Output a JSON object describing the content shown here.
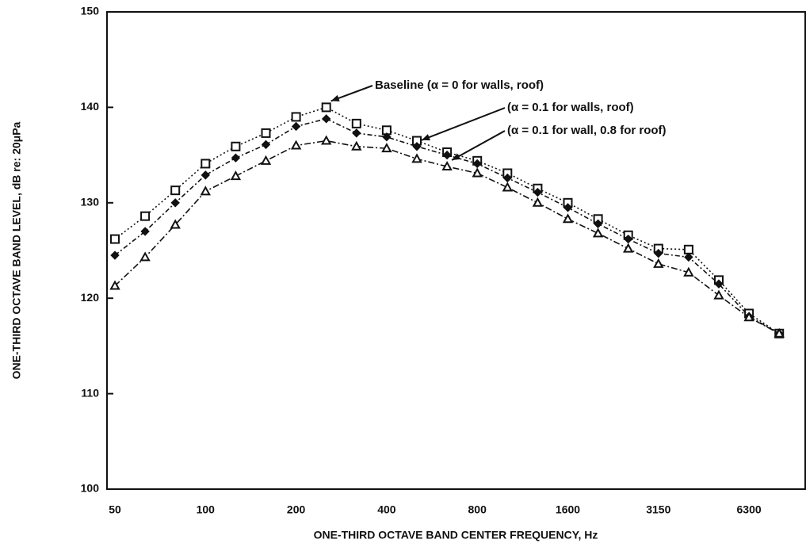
{
  "chart_data": {
    "type": "line",
    "xlabel": "ONE-THIRD OCTAVE BAND CENTER FREQUENCY, Hz",
    "ylabel": "ONE-THIRD OCTAVE BAND LEVEL, dB re: 20μPa",
    "categories": [
      "50",
      null,
      null,
      "100",
      null,
      null,
      "200",
      null,
      null,
      "400",
      null,
      null,
      "800",
      null,
      null,
      "1600",
      null,
      null,
      "3150",
      null,
      null,
      "6300",
      null
    ],
    "ylim": [
      100,
      150
    ],
    "yticks": [
      100,
      110,
      120,
      130,
      140,
      150
    ],
    "series": [
      {
        "name": "Baseline (α = 0 for walls, roof)",
        "color": "#111111",
        "marker": "square",
        "values": [
          126.2,
          128.6,
          131.3,
          134.1,
          135.9,
          137.3,
          139.0,
          140.0,
          138.3,
          137.6,
          136.5,
          135.3,
          134.4,
          133.1,
          131.5,
          130.0,
          128.3,
          126.6,
          125.2,
          125.1,
          121.9,
          118.4,
          116.3
        ]
      },
      {
        "name": "(α = 0.1 for walls, roof)",
        "color": "#111111",
        "marker": "diamond",
        "values": [
          124.5,
          127.0,
          130.0,
          132.9,
          134.7,
          136.1,
          138.0,
          138.8,
          137.3,
          136.9,
          135.9,
          135.0,
          134.1,
          132.6,
          131.1,
          129.5,
          127.8,
          126.2,
          124.7,
          124.3,
          121.5,
          118.1,
          116.3
        ]
      },
      {
        "name": "(α = 0.1 for wall, 0.8 for roof)",
        "color": "#111111",
        "marker": "triangle",
        "values": [
          121.3,
          124.3,
          127.7,
          131.2,
          132.8,
          134.4,
          136.0,
          136.5,
          135.9,
          135.7,
          134.6,
          133.8,
          133.1,
          131.6,
          130.0,
          128.3,
          126.8,
          125.2,
          123.6,
          122.7,
          120.3,
          118.0,
          116.3
        ]
      }
    ]
  }
}
